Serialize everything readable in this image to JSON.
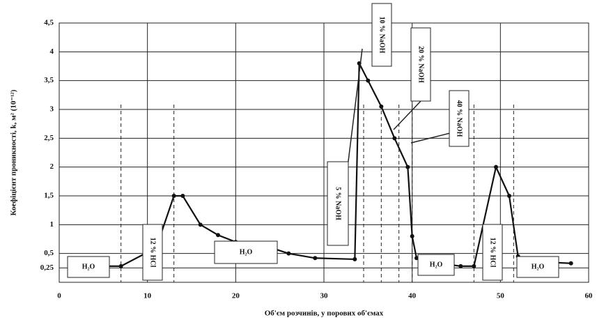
{
  "chart_data": {
    "type": "line",
    "xlabel": "Об'єм розчинів, у порових об'ємах",
    "ylabel": "Коефіцієнт проникності, k, м² (10⁻¹²)",
    "xlim": [
      0,
      60
    ],
    "xticks": [
      0,
      10,
      20,
      30,
      40,
      50,
      60
    ],
    "ylim": [
      0,
      4.5
    ],
    "yticks": [
      {
        "value": 0.25,
        "label": "0,25"
      },
      {
        "value": 0.5,
        "label": "0,5"
      },
      1,
      {
        "value": 1.5,
        "label": "1,5"
      },
      2,
      {
        "value": 2.5,
        "label": "2,5"
      },
      3,
      {
        "value": 3.5,
        "label": "3,5"
      },
      4,
      {
        "value": 4.5,
        "label": "4,5"
      }
    ],
    "grid": true,
    "series": [
      {
        "color": "#111111",
        "x": [
          1.5,
          4,
          7,
          11,
          13,
          14,
          16,
          18,
          20,
          23,
          26,
          29,
          33.5,
          34,
          35,
          36.5,
          38,
          39.5,
          40,
          40.5,
          43,
          45.5,
          47,
          49.5,
          51,
          52,
          55,
          58
        ],
        "values": [
          0.28,
          0.28,
          0.28,
          0.6,
          1.5,
          1.5,
          1.0,
          0.82,
          0.7,
          0.65,
          0.5,
          0.42,
          0.4,
          3.8,
          3.5,
          3.05,
          2.5,
          2.0,
          0.8,
          0.42,
          0.33,
          0.28,
          0.28,
          2.0,
          1.5,
          0.45,
          0.35,
          0.33
        ]
      }
    ],
    "boundaries": [
      7,
      13,
      34.5,
      36.5,
      38.5,
      40,
      47,
      51.5
    ],
    "annotations": [
      "H₂O",
      "12 % HCl",
      "H₂O",
      "5 % NaOH",
      "10 % NaOH",
      "20 % NaOH",
      "40 % NaOH",
      "H₂O",
      "12 % HCl",
      "H₂O"
    ]
  }
}
